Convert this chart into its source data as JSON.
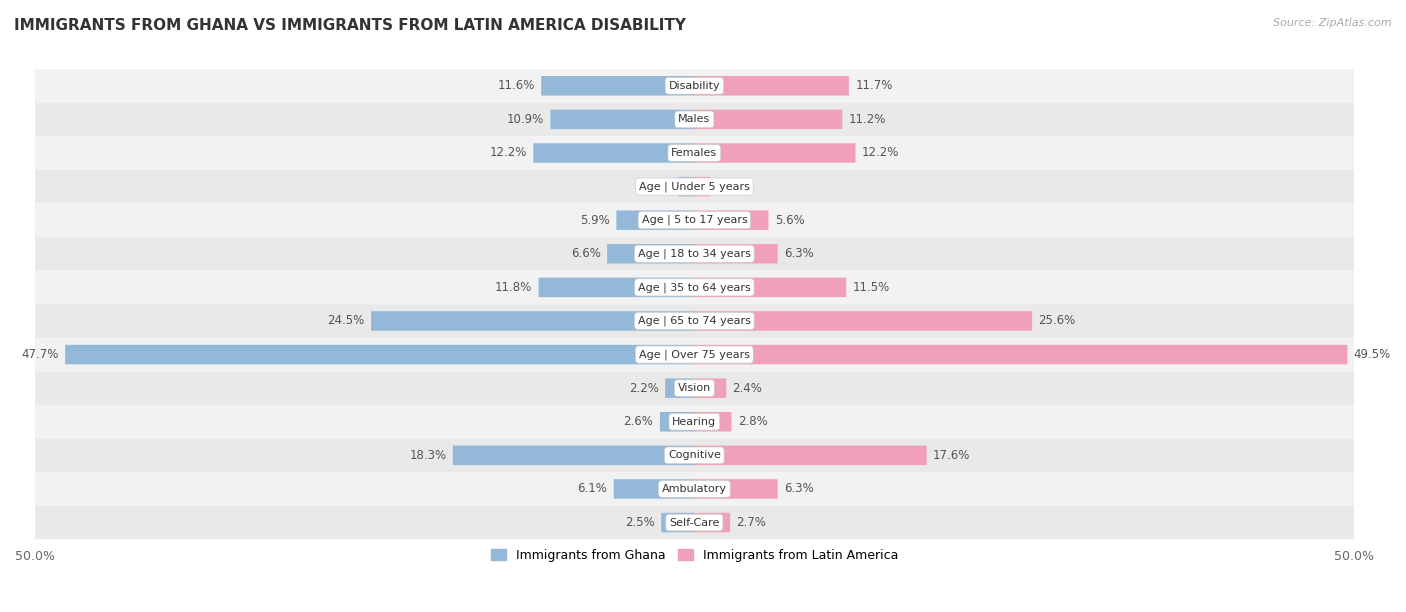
{
  "title": "IMMIGRANTS FROM GHANA VS IMMIGRANTS FROM LATIN AMERICA DISABILITY",
  "source": "Source: ZipAtlas.com",
  "categories": [
    "Disability",
    "Males",
    "Females",
    "Age | Under 5 years",
    "Age | 5 to 17 years",
    "Age | 18 to 34 years",
    "Age | 35 to 64 years",
    "Age | 65 to 74 years",
    "Age | Over 75 years",
    "Vision",
    "Hearing",
    "Cognitive",
    "Ambulatory",
    "Self-Care"
  ],
  "ghana_values": [
    11.6,
    10.9,
    12.2,
    1.2,
    5.9,
    6.6,
    11.8,
    24.5,
    47.7,
    2.2,
    2.6,
    18.3,
    6.1,
    2.5
  ],
  "latin_values": [
    11.7,
    11.2,
    12.2,
    1.2,
    5.6,
    6.3,
    11.5,
    25.6,
    49.5,
    2.4,
    2.8,
    17.6,
    6.3,
    2.7
  ],
  "ghana_color": "#94b8d8",
  "latin_color": "#f0a0b8",
  "ghana_label": "Immigrants from Ghana",
  "latin_label": "Immigrants from Latin America",
  "axis_limit": 50.0,
  "row_color_odd": "#f0f0f0",
  "row_color_even": "#e8e8e8",
  "bar_bg_color": "#ffffff",
  "title_fontsize": 11,
  "label_fontsize": 8,
  "value_fontsize": 8.5,
  "bar_height": 0.55
}
